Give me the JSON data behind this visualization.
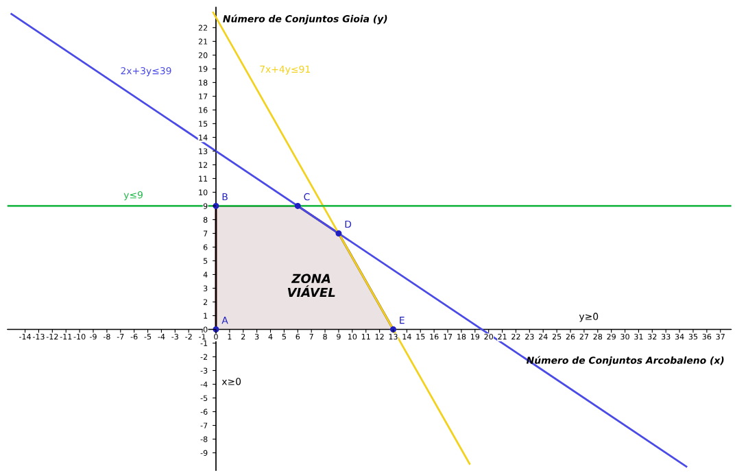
{
  "chart_data": {
    "type": "line",
    "xlabel": "Número de Conjuntos Arcobaleno (x)",
    "ylabel": "Número de Conjuntos Gioia (y)",
    "series": [
      {
        "type": "area",
        "color": "#5a1a1a",
        "x": [
          0,
          6,
          9,
          13
        ],
        "values": [
          9,
          9,
          7,
          0
        ]
      },
      {
        "name": "2x+3y≤39",
        "color": "#4a4ae6",
        "x": [
          -15,
          34.5
        ],
        "values": [
          23,
          -10
        ]
      },
      {
        "name": "7x+4y≤91",
        "color": "#f2d21e",
        "x": [
          -0.2,
          18.6
        ],
        "values": [
          23.1,
          -9.8
        ]
      },
      {
        "name": "y≤9",
        "color": "#22b84a",
        "x": [
          -15.3,
          37.8
        ],
        "values": [
          9,
          9
        ]
      },
      {
        "type": "scatter",
        "color": "#2020c0",
        "x": [
          0,
          0,
          6,
          9,
          13
        ],
        "values": [
          0,
          9,
          9,
          7,
          0
        ],
        "value_labels": [
          "A",
          "B",
          "C",
          "D",
          "E"
        ]
      }
    ],
    "annotations": [
      "ZONA\nVIÁVEL"
    ],
    "ref_lines": [
      {
        "axis": "y",
        "value": 0,
        "label": "y≥0"
      },
      {
        "axis": "x",
        "value": 0,
        "label": "x≥0"
      }
    ],
    "xlim": [
      -15.3,
      37.8
    ],
    "ylim": [
      -10.3,
      23.5
    ],
    "xticks": [
      -14,
      -13,
      -12,
      -11,
      -10,
      -9,
      -8,
      -7,
      -6,
      -5,
      -4,
      -3,
      -2,
      -1,
      0,
      1,
      2,
      3,
      4,
      5,
      6,
      7,
      8,
      9,
      10,
      11,
      12,
      13,
      14,
      15,
      16,
      17,
      18,
      19,
      20,
      21,
      22,
      23,
      24,
      25,
      26,
      27,
      28,
      29,
      30,
      31,
      32,
      33,
      34,
      35,
      36,
      37
    ],
    "yticks": [
      -9,
      -8,
      -7,
      -6,
      -5,
      -4,
      -3,
      -2,
      -1,
      0,
      1,
      2,
      3,
      4,
      5,
      6,
      7,
      8,
      9,
      10,
      11,
      12,
      13,
      14,
      15,
      16,
      17,
      18,
      19,
      20,
      21,
      22
    ],
    "grid": false,
    "legend": false,
    "marker": "none",
    "line_style": "solid"
  }
}
